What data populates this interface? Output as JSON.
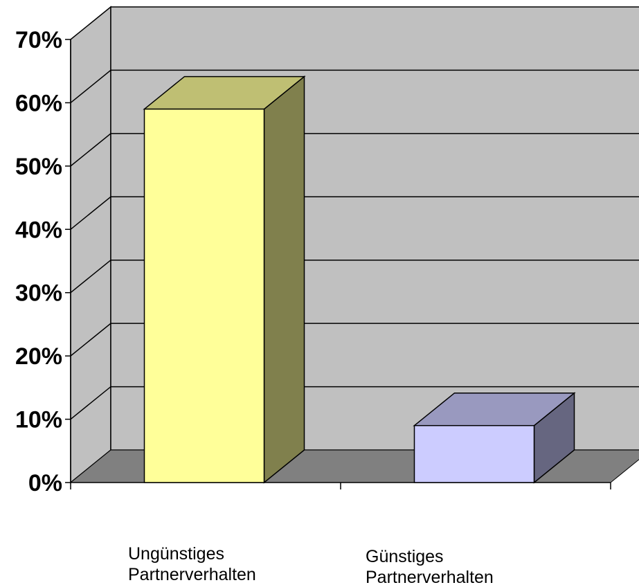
{
  "chart_data": {
    "type": "bar",
    "style": "3d-column",
    "categories": [
      "Ungünstiges Partnerverhalten",
      "Günstiges Partnerverhalten"
    ],
    "category_lines": [
      [
        "Ungünstiges",
        "Partnerverhalten"
      ],
      [
        "Günstiges",
        "Partnerverhalten"
      ]
    ],
    "values": [
      59,
      9
    ],
    "y_ticks": [
      0,
      10,
      20,
      30,
      40,
      50,
      60,
      70
    ],
    "y_tick_labels": [
      "0%",
      "10%",
      "20%",
      "30%",
      "40%",
      "50%",
      "60%",
      "70%"
    ],
    "ylim": [
      0,
      70
    ],
    "title": "",
    "xlabel": "",
    "ylabel": "",
    "grid": true,
    "legend": "none",
    "colors": {
      "bar_fronts": [
        "#ffff99",
        "#ccccff"
      ],
      "bar_tops": [
        "#bfbf73",
        "#9999bf"
      ],
      "bar_sides": [
        "#80804d",
        "#666680"
      ],
      "back_wall": "#c0c0c0",
      "side_wall": "#c0c0c0",
      "floor": "#808080"
    }
  }
}
